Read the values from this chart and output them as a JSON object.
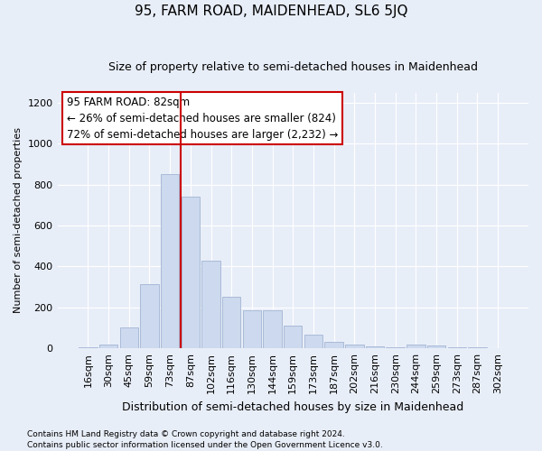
{
  "title": "95, FARM ROAD, MAIDENHEAD, SL6 5JQ",
  "subtitle": "Size of property relative to semi-detached houses in Maidenhead",
  "xlabel": "Distribution of semi-detached houses by size in Maidenhead",
  "ylabel": "Number of semi-detached properties",
  "footnote1": "Contains HM Land Registry data © Crown copyright and database right 2024.",
  "footnote2": "Contains public sector information licensed under the Open Government Licence v3.0.",
  "annotation_line1": "95 FARM ROAD: 82sqm",
  "annotation_line2": "← 26% of semi-detached houses are smaller (824)",
  "annotation_line3": "72% of semi-detached houses are larger (2,232) →",
  "categories": [
    "16sqm",
    "30sqm",
    "45sqm",
    "59sqm",
    "73sqm",
    "87sqm",
    "102sqm",
    "116sqm",
    "130sqm",
    "144sqm",
    "159sqm",
    "173sqm",
    "187sqm",
    "202sqm",
    "216sqm",
    "230sqm",
    "244sqm",
    "259sqm",
    "273sqm",
    "287sqm",
    "302sqm"
  ],
  "values": [
    5,
    20,
    100,
    315,
    850,
    740,
    430,
    250,
    185,
    185,
    110,
    65,
    30,
    20,
    10,
    5,
    20,
    15,
    5,
    5,
    2
  ],
  "bar_color": "#ccd9ee",
  "bar_edge_color": "#aabbd8",
  "vline_color": "#cc0000",
  "vline_x": 4.5,
  "annotation_box_facecolor": "#ffffff",
  "annotation_box_edge": "#cc0000",
  "ylim": [
    0,
    1250
  ],
  "yticks": [
    0,
    200,
    400,
    600,
    800,
    1000,
    1200
  ],
  "background_color": "#e8eef8",
  "grid_color": "#ffffff",
  "title_fontsize": 11,
  "subtitle_fontsize": 9,
  "xlabel_fontsize": 9,
  "ylabel_fontsize": 8,
  "annotation_fontsize": 8.5,
  "tick_fontsize": 8,
  "footnote_fontsize": 6.5
}
